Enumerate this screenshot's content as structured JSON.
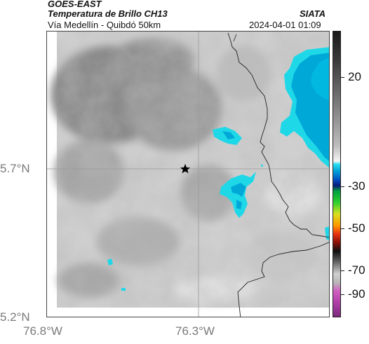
{
  "header": {
    "satellite": "GOES-EAST",
    "product": "Temperatura de Brillo CH13",
    "region": "Vía Medellín - Quibdó 50km",
    "agency": "SIATA",
    "datetime": "2024-04-01 01:09"
  },
  "axes": {
    "lat_ticks": [
      "5.7°N",
      "5.2°N"
    ],
    "lon_ticks": [
      "76.8°W",
      "76.3°W"
    ]
  },
  "colorbar": {
    "labels": [
      "20",
      "-30",
      "-50",
      "-70",
      "-90"
    ]
  },
  "colors": {
    "cold_cloud": "#00a8d8",
    "cold_cloud_edge": "#1ed8e8",
    "grid": "#9a9a9a",
    "border": "#222222"
  },
  "map": {
    "marker": "star-icon"
  }
}
